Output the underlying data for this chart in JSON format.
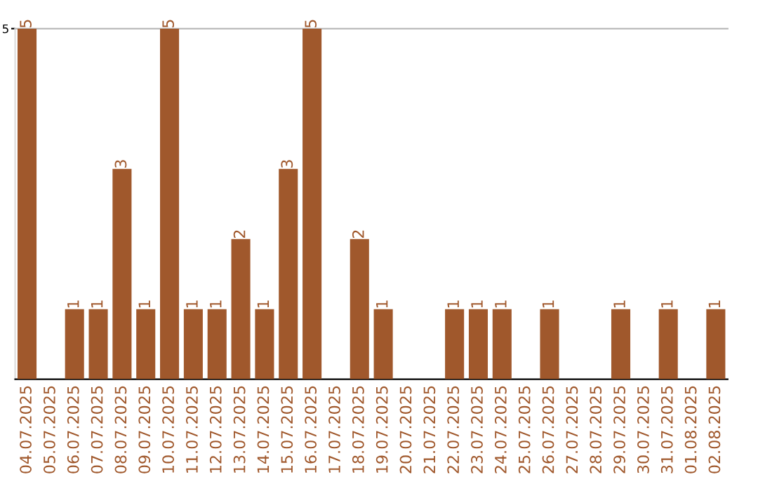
{
  "chart_data": {
    "type": "bar",
    "categories": [
      "04.07.2025",
      "05.07.2025",
      "06.07.2025",
      "07.07.2025",
      "08.07.2025",
      "09.07.2025",
      "10.07.2025",
      "11.07.2025",
      "12.07.2025",
      "13.07.2025",
      "14.07.2025",
      "15.07.2025",
      "16.07.2025",
      "17.07.2025",
      "18.07.2025",
      "19.07.2025",
      "20.07.2025",
      "21.07.2025",
      "22.07.2025",
      "23.07.2025",
      "24.07.2025",
      "25.07.2025",
      "26.07.2025",
      "27.07.2025",
      "28.07.2025",
      "29.07.2025",
      "30.07.2025",
      "31.07.2025",
      "01.08.2025",
      "02.08.2025"
    ],
    "values": [
      5,
      0,
      1,
      1,
      3,
      1,
      5,
      1,
      1,
      2,
      1,
      3,
      5,
      0,
      2,
      1,
      0,
      0,
      1,
      1,
      1,
      0,
      1,
      0,
      0,
      1,
      0,
      1,
      0,
      1
    ],
    "value_labels": [
      "5",
      null,
      "1",
      "1",
      "3",
      "1",
      "5",
      "1",
      "1",
      "2",
      "1",
      "3",
      "5",
      null,
      "2",
      "1",
      null,
      null,
      "1",
      "1",
      "1",
      null,
      "1",
      null,
      null,
      "1",
      null,
      "1",
      null,
      "1"
    ],
    "color": "#a0582c",
    "ylim": [
      0,
      5
    ],
    "yticks": [
      5
    ]
  }
}
